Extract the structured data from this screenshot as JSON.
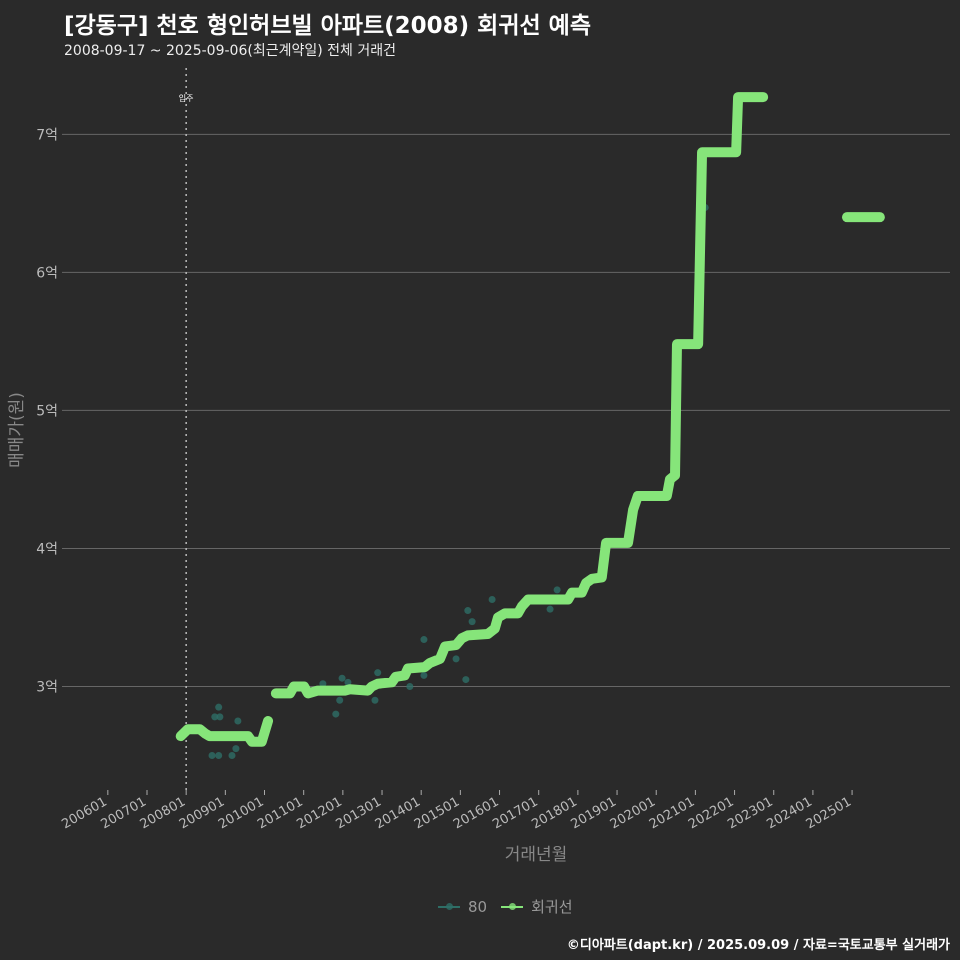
{
  "title": "[강동구] 천호 형인허브빌 아파트(2008) 회귀선 예측",
  "subtitle": "2008-09-17 ~ 2025-09-06(최근계약일) 전체 거래건",
  "caption": "©디아파트(dapt.kr) / 2025.09.09 / 자료=국토교통부 실거래가",
  "colors": {
    "line": "#86e57a",
    "points": "#2e6e66",
    "grid": "#666666",
    "bg": "#2a2a2a"
  },
  "chart_data": {
    "type": "line",
    "xlabel": "거래년월",
    "ylabel": "매매가(원)",
    "xlim": [
      2004.83,
      2027.5
    ],
    "ylim": [
      2.25,
      7.43
    ],
    "x_ticks": [
      {
        "v": 2006,
        "label": "200601"
      },
      {
        "v": 2007,
        "label": "200701"
      },
      {
        "v": 2008,
        "label": "200801"
      },
      {
        "v": 2009,
        "label": "200901"
      },
      {
        "v": 2010,
        "label": "201001"
      },
      {
        "v": 2011,
        "label": "201101"
      },
      {
        "v": 2012,
        "label": "201201"
      },
      {
        "v": 2013,
        "label": "201301"
      },
      {
        "v": 2014,
        "label": "201401"
      },
      {
        "v": 2015,
        "label": "201501"
      },
      {
        "v": 2016,
        "label": "201601"
      },
      {
        "v": 2017,
        "label": "201701"
      },
      {
        "v": 2018,
        "label": "201801"
      },
      {
        "v": 2019,
        "label": "201901"
      },
      {
        "v": 2020,
        "label": "202001"
      },
      {
        "v": 2021,
        "label": "202101"
      },
      {
        "v": 2022,
        "label": "202201"
      },
      {
        "v": 2023,
        "label": "202301"
      },
      {
        "v": 2024,
        "label": "202401"
      },
      {
        "v": 2025,
        "label": "202501"
      }
    ],
    "y_ticks": [
      {
        "v": 3,
        "label": "3억"
      },
      {
        "v": 4,
        "label": "4억"
      },
      {
        "v": 5,
        "label": "5억"
      },
      {
        "v": 6,
        "label": "6억"
      },
      {
        "v": 7,
        "label": "7억"
      }
    ],
    "annotation": {
      "x": 2008.0,
      "label": "입주"
    },
    "legend": [
      {
        "name": "80"
      },
      {
        "name": "회귀선"
      }
    ],
    "series": [
      {
        "name": "회귀선",
        "segments": [
          [
            [
              2007.86,
              2.64
            ],
            [
              2008.04,
              2.69
            ],
            [
              2008.35,
              2.69
            ],
            [
              2008.48,
              2.66
            ],
            [
              2008.6,
              2.64
            ],
            [
              2009.58,
              2.64
            ],
            [
              2009.68,
              2.6
            ],
            [
              2009.93,
              2.6
            ],
            [
              2010.09,
              2.75
            ]
          ],
          [
            [
              2010.29,
              2.95
            ],
            [
              2010.65,
              2.95
            ],
            [
              2010.75,
              3.0
            ],
            [
              2011.01,
              3.0
            ],
            [
              2011.11,
              2.95
            ],
            [
              2011.36,
              2.97
            ],
            [
              2012.05,
              2.97
            ],
            [
              2012.18,
              2.98
            ],
            [
              2012.64,
              2.97
            ],
            [
              2012.74,
              3.0
            ],
            [
              2012.89,
              3.02
            ],
            [
              2013.25,
              3.03
            ],
            [
              2013.35,
              3.07
            ],
            [
              2013.58,
              3.08
            ],
            [
              2013.66,
              3.13
            ],
            [
              2014.09,
              3.14
            ],
            [
              2014.22,
              3.17
            ],
            [
              2014.48,
              3.2
            ],
            [
              2014.61,
              3.29
            ],
            [
              2014.89,
              3.3
            ],
            [
              2015.04,
              3.35
            ],
            [
              2015.19,
              3.37
            ],
            [
              2015.7,
              3.38
            ],
            [
              2015.88,
              3.42
            ],
            [
              2015.96,
              3.5
            ],
            [
              2016.14,
              3.53
            ],
            [
              2016.47,
              3.53
            ],
            [
              2016.57,
              3.58
            ],
            [
              2016.73,
              3.63
            ],
            [
              2017.75,
              3.63
            ],
            [
              2017.85,
              3.68
            ],
            [
              2018.1,
              3.68
            ],
            [
              2018.21,
              3.75
            ],
            [
              2018.36,
              3.78
            ],
            [
              2018.61,
              3.79
            ],
            [
              2018.72,
              4.04
            ],
            [
              2019.28,
              4.04
            ],
            [
              2019.41,
              4.28
            ],
            [
              2019.53,
              4.38
            ],
            [
              2020.27,
              4.38
            ],
            [
              2020.35,
              4.5
            ],
            [
              2020.48,
              4.53
            ],
            [
              2020.53,
              5.48
            ],
            [
              2021.07,
              5.48
            ],
            [
              2021.17,
              6.87
            ],
            [
              2022.04,
              6.87
            ],
            [
              2022.09,
              7.27
            ],
            [
              2022.73,
              7.27
            ]
          ],
          [
            [
              2024.87,
              6.4
            ],
            [
              2025.71,
              6.4
            ]
          ]
        ]
      },
      {
        "name": "80",
        "points": [
          [
            2008.73,
            2.78
          ],
          [
            2008.86,
            2.78
          ],
          [
            2008.83,
            2.85
          ],
          [
            2008.66,
            2.5
          ],
          [
            2008.83,
            2.5
          ],
          [
            2009.17,
            2.5
          ],
          [
            2009.27,
            2.55
          ],
          [
            2009.32,
            2.75
          ],
          [
            2011.49,
            3.02
          ],
          [
            2011.82,
            2.8
          ],
          [
            2011.92,
            2.9
          ],
          [
            2011.98,
            3.06
          ],
          [
            2012.13,
            3.03
          ],
          [
            2012.82,
            2.9
          ],
          [
            2012.89,
            3.1
          ],
          [
            2013.71,
            3.0
          ],
          [
            2014.07,
            3.08
          ],
          [
            2014.07,
            3.34
          ],
          [
            2014.89,
            3.2
          ],
          [
            2015.14,
            3.05
          ],
          [
            2015.19,
            3.55
          ],
          [
            2015.3,
            3.47
          ],
          [
            2015.81,
            3.63
          ],
          [
            2017.29,
            3.56
          ],
          [
            2017.47,
            3.7
          ],
          [
            2021.25,
            6.47
          ]
        ]
      }
    ]
  }
}
